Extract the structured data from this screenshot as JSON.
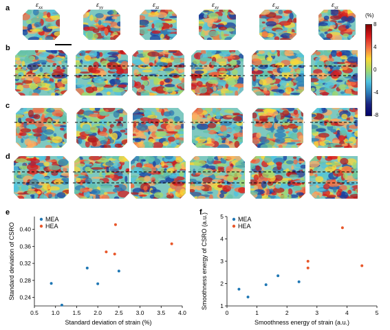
{
  "panel_labels": [
    "a",
    "b",
    "c",
    "d",
    "e",
    "f"
  ],
  "columns": [
    {
      "sym": "ε",
      "sub": "xx"
    },
    {
      "sym": "ε",
      "sub": "yy"
    },
    {
      "sym": "ε",
      "sub": "zz"
    },
    {
      "sym": "ε",
      "sub": "xy"
    },
    {
      "sym": "ε",
      "sub": "xz"
    },
    {
      "sym": "ε",
      "sub": "yz"
    }
  ],
  "colorbar": {
    "unit": "(%)",
    "ticks": [
      "8",
      "4",
      "0",
      "-4",
      "-8"
    ],
    "colors": [
      "#7f0000",
      "#d7191c",
      "#f46d43",
      "#fdd835",
      "#a6d96a",
      "#4fc3e0",
      "#2c7bb6",
      "#1a237e",
      "#00006a"
    ]
  },
  "colors": {
    "MEA": "#1f77b4",
    "HEA": "#e8572a"
  },
  "chart_data": [
    {
      "type": "scatter",
      "panel": "e",
      "xlabel": "Standard deviation of strain (%)",
      "ylabel": "Standard deviation of CSRO",
      "xlim": [
        0.5,
        4.0
      ],
      "ylim": [
        0.22,
        0.43
      ],
      "xticks": [
        0.5,
        1.0,
        1.5,
        2.0,
        2.5,
        3.0,
        3.5,
        4.0
      ],
      "yticks": [
        0.24,
        0.28,
        0.32,
        0.36,
        0.4
      ],
      "ytick_labels": [
        "0.24",
        "0.28",
        "0.32",
        "0.36",
        "0.40"
      ],
      "xtick_labels": [
        "0.5",
        "1.0",
        "1.5",
        "2.0",
        "2.5",
        "3.0",
        "3.5",
        "4.0"
      ],
      "legend": "top-left",
      "series": [
        {
          "name": "MEA",
          "points": [
            [
              0.9,
              0.273
            ],
            [
              1.15,
              0.222
            ],
            [
              1.75,
              0.309
            ],
            [
              2.0,
              0.272
            ],
            [
              2.5,
              0.302
            ]
          ]
        },
        {
          "name": "HEA",
          "points": [
            [
              2.2,
              0.347
            ],
            [
              2.4,
              0.342
            ],
            [
              2.42,
              0.411
            ],
            [
              3.75,
              0.366
            ]
          ]
        }
      ]
    },
    {
      "type": "scatter",
      "panel": "f",
      "xlabel": "Smoothness energy of strain (a.u.)",
      "ylabel": "Smoothness energy of CSRO (a.u.)",
      "xlim": [
        0,
        5
      ],
      "ylim": [
        1,
        5
      ],
      "xticks": [
        0,
        1,
        2,
        3,
        4,
        5
      ],
      "yticks": [
        1,
        2,
        3,
        4,
        5
      ],
      "ytick_labels": [
        "1",
        "2",
        "3",
        "4",
        "5"
      ],
      "xtick_labels": [
        "0",
        "1",
        "2",
        "3",
        "4",
        "5"
      ],
      "legend": "top-left",
      "series": [
        {
          "name": "MEA",
          "points": [
            [
              0.4,
              1.75
            ],
            [
              0.7,
              1.4
            ],
            [
              1.3,
              1.95
            ],
            [
              1.7,
              2.35
            ],
            [
              2.4,
              2.08
            ]
          ]
        },
        {
          "name": "HEA",
          "points": [
            [
              2.7,
              2.7
            ],
            [
              2.7,
              3.0
            ],
            [
              3.85,
              4.5
            ],
            [
              4.5,
              2.8
            ]
          ]
        }
      ]
    }
  ]
}
